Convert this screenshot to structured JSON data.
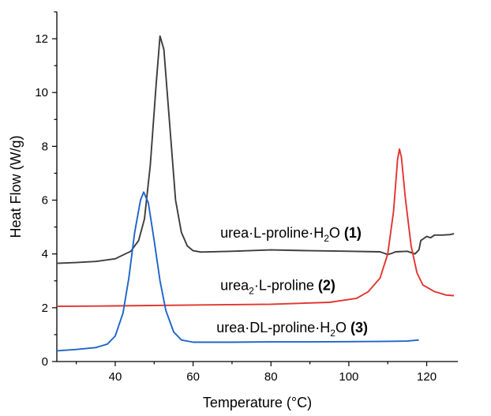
{
  "chart_data": {
    "type": "line",
    "xlabel": "Temperature (°C)",
    "ylabel": "Heat Flow (W/g)",
    "xlim": [
      25,
      128
    ],
    "ylim": [
      0,
      13
    ],
    "x_ticks": [
      40,
      60,
      80,
      100,
      120
    ],
    "y_ticks": [
      0,
      2,
      4,
      6,
      8,
      10,
      12
    ],
    "grid": false,
    "series": [
      {
        "name_parts": [
          "urea·L-proline·H",
          "2",
          "O ",
          "(1)"
        ],
        "color": "#3d3d3d",
        "label_at": [
          67,
          4.6
        ],
        "points": [
          [
            25,
            3.65
          ],
          [
            30,
            3.68
          ],
          [
            35,
            3.72
          ],
          [
            40,
            3.82
          ],
          [
            44,
            4.1
          ],
          [
            46,
            4.5
          ],
          [
            47.5,
            5.3
          ],
          [
            49,
            7.3
          ],
          [
            50.5,
            10.3
          ],
          [
            51.5,
            12.1
          ],
          [
            52.5,
            11.6
          ],
          [
            54,
            8.8
          ],
          [
            55.5,
            6.0
          ],
          [
            57,
            4.8
          ],
          [
            58.5,
            4.3
          ],
          [
            60,
            4.12
          ],
          [
            62,
            4.07
          ],
          [
            70,
            4.1
          ],
          [
            80,
            4.15
          ],
          [
            90,
            4.12
          ],
          [
            100,
            4.1
          ],
          [
            108,
            4.08
          ],
          [
            110,
            3.98
          ],
          [
            111,
            4.02
          ],
          [
            112,
            4.08
          ],
          [
            115,
            4.1
          ],
          [
            117,
            4.0
          ],
          [
            118,
            4.15
          ],
          [
            118.5,
            4.5
          ],
          [
            119,
            4.55
          ],
          [
            120,
            4.65
          ],
          [
            121,
            4.6
          ],
          [
            122,
            4.7
          ],
          [
            124,
            4.7
          ],
          [
            126,
            4.72
          ],
          [
            127,
            4.75
          ]
        ]
      },
      {
        "name_parts": [
          "urea",
          "2",
          "·L-proline ",
          "(2)"
        ],
        "color": "#e2352f",
        "label_at": [
          67,
          2.65
        ],
        "points": [
          [
            25,
            2.05
          ],
          [
            40,
            2.07
          ],
          [
            60,
            2.1
          ],
          [
            80,
            2.13
          ],
          [
            95,
            2.2
          ],
          [
            102,
            2.35
          ],
          [
            105,
            2.6
          ],
          [
            108,
            3.1
          ],
          [
            110,
            4.0
          ],
          [
            111.5,
            5.6
          ],
          [
            112.5,
            7.5
          ],
          [
            113,
            7.9
          ],
          [
            113.5,
            7.6
          ],
          [
            114.5,
            6.1
          ],
          [
            116,
            4.3
          ],
          [
            117.5,
            3.3
          ],
          [
            119,
            2.85
          ],
          [
            122,
            2.6
          ],
          [
            125,
            2.47
          ],
          [
            127,
            2.45
          ]
        ]
      },
      {
        "name_parts": [
          "urea·DL-proline·H",
          "2",
          "O ",
          "(3)"
        ],
        "color": "#1f64c9",
        "label_at": [
          66,
          1.08
        ],
        "points": [
          [
            25,
            0.4
          ],
          [
            30,
            0.45
          ],
          [
            35,
            0.52
          ],
          [
            38,
            0.65
          ],
          [
            40,
            0.95
          ],
          [
            42,
            1.8
          ],
          [
            43.5,
            3.1
          ],
          [
            45,
            4.8
          ],
          [
            46.5,
            6.0
          ],
          [
            47.3,
            6.3
          ],
          [
            48.5,
            5.9
          ],
          [
            50,
            4.5
          ],
          [
            51.5,
            3.0
          ],
          [
            53,
            1.9
          ],
          [
            55,
            1.1
          ],
          [
            57,
            0.8
          ],
          [
            60,
            0.72
          ],
          [
            70,
            0.72
          ],
          [
            80,
            0.73
          ],
          [
            90,
            0.73
          ],
          [
            100,
            0.74
          ],
          [
            110,
            0.75
          ],
          [
            115,
            0.76
          ],
          [
            118,
            0.8
          ]
        ]
      }
    ]
  }
}
